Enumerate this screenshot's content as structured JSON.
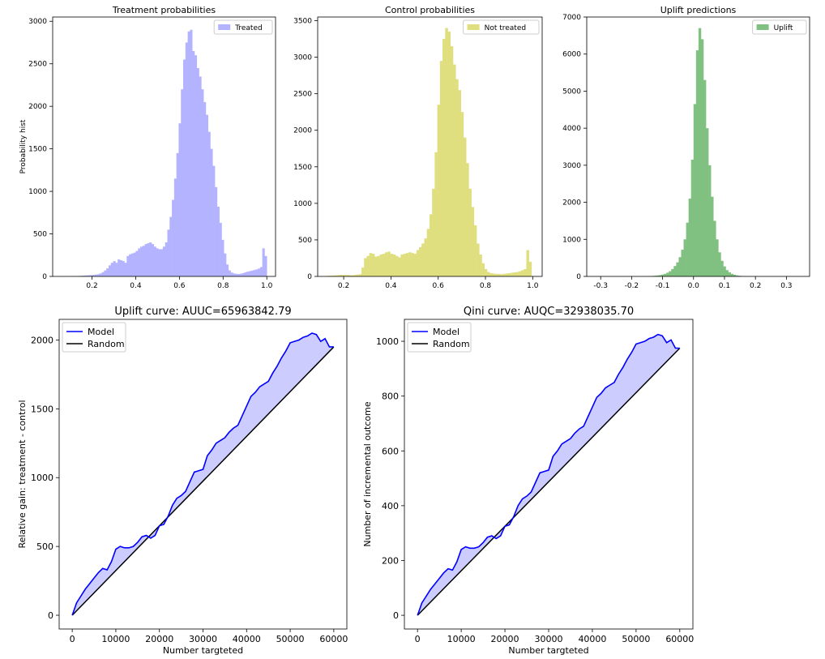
{
  "chart_data": [
    {
      "id": "treated",
      "type": "histogram",
      "title": "Treatment probabilities",
      "ylabel": "Probability hist",
      "xlabel": "",
      "legend": [
        "Treated"
      ],
      "legend_placement": "top-right",
      "color": "#0000ff",
      "alpha": 0.3,
      "xlim": [
        0.02,
        1.04
      ],
      "ylim": [
        0,
        3050
      ],
      "xticks": [
        0.2,
        0.4,
        0.6,
        0.8,
        1.0
      ],
      "xtick_labels": [
        "0.2",
        "0.4",
        "0.6",
        "0.8",
        "1.0"
      ],
      "yticks": [
        0,
        500,
        1000,
        1500,
        2000,
        2500,
        3000
      ],
      "bin_start": 0.1,
      "bin_end": 1.0,
      "counts": [
        2,
        3,
        4,
        5,
        6,
        8,
        10,
        12,
        14,
        16,
        18,
        22,
        26,
        35,
        50,
        70,
        95,
        130,
        160,
        180,
        160,
        200,
        190,
        180,
        160,
        240,
        260,
        270,
        280,
        300,
        330,
        350,
        360,
        380,
        390,
        400,
        380,
        350,
        330,
        320,
        320,
        350,
        400,
        550,
        700,
        900,
        1150,
        1450,
        1800,
        2200,
        2550,
        2750,
        2880,
        2900,
        2650,
        2600,
        2450,
        2350,
        2200,
        2050,
        1900,
        1700,
        1500,
        1300,
        1050,
        820,
        630,
        430,
        270,
        140,
        70,
        45,
        35,
        30,
        28,
        32,
        38,
        48,
        55,
        62,
        68,
        75,
        82,
        92,
        110,
        330,
        240
      ]
    },
    {
      "id": "control",
      "type": "histogram",
      "title": "Control probabilities",
      "ylabel": "",
      "xlabel": "",
      "legend": [
        "Not treated"
      ],
      "legend_placement": "top-right",
      "color": "#bfbf00",
      "alpha": 0.5,
      "xlim": [
        0.09,
        1.04
      ],
      "ylim": [
        0,
        3550
      ],
      "xticks": [
        0.2,
        0.4,
        0.6,
        0.8,
        1.0
      ],
      "xtick_labels": [
        "0.2",
        "0.4",
        "0.6",
        "0.8",
        "1.0"
      ],
      "yticks": [
        0,
        500,
        1000,
        1500,
        2000,
        2500,
        3000,
        3500
      ],
      "bin_start": 0.12,
      "bin_end": 0.995,
      "counts": [
        5,
        8,
        10,
        12,
        15,
        18,
        22,
        20,
        20,
        18,
        15,
        20,
        25,
        30,
        120,
        250,
        280,
        320,
        310,
        270,
        280,
        300,
        310,
        330,
        340,
        310,
        300,
        280,
        260,
        300,
        310,
        320,
        330,
        320,
        310,
        360,
        400,
        450,
        520,
        650,
        850,
        1200,
        1700,
        2350,
        2950,
        3250,
        3400,
        3350,
        3150,
        2900,
        2700,
        2550,
        2250,
        1900,
        1550,
        1200,
        950,
        700,
        450,
        300,
        180,
        100,
        60,
        45,
        40,
        35,
        35,
        30,
        35,
        40,
        45,
        50,
        55,
        60,
        70,
        85,
        100,
        360,
        200
      ]
    },
    {
      "id": "uplift",
      "type": "histogram",
      "title": "Uplift predictions",
      "ylabel": "",
      "xlabel": "",
      "legend": [
        "Uplift"
      ],
      "legend_placement": "top-right",
      "color": "#008000",
      "alpha": 0.5,
      "xlim": [
        -0.345,
        0.375
      ],
      "ylim": [
        0,
        7000
      ],
      "xticks": [
        -0.3,
        -0.2,
        -0.1,
        0.0,
        0.1,
        0.2,
        0.3
      ],
      "xtick_labels": [
        "-0.3",
        "-0.2",
        "-0.1",
        "0.0",
        "0.1",
        "0.2",
        "0.3"
      ],
      "yticks": [
        0,
        1000,
        2000,
        3000,
        4000,
        5000,
        6000,
        7000
      ],
      "bin_start": -0.16,
      "bin_end": 0.2,
      "counts": [
        3,
        5,
        8,
        12,
        18,
        25,
        35,
        50,
        70,
        100,
        140,
        200,
        280,
        380,
        520,
        720,
        1000,
        1450,
        2100,
        3150,
        4650,
        6100,
        6700,
        6400,
        5300,
        4000,
        3000,
        2150,
        1500,
        1000,
        650,
        420,
        270,
        170,
        110,
        70,
        45,
        28,
        18,
        10,
        6,
        4,
        3,
        2,
        1
      ]
    },
    {
      "id": "uplift_curve",
      "type": "line",
      "title": "Uplift curve: AUUC=65963842.79",
      "xlabel": "Number targteted",
      "ylabel": "Relative gain: treatment - control",
      "legend": [
        "Model",
        "Random"
      ],
      "legend_placement": "top-left",
      "xlim": [
        -3000,
        63000
      ],
      "ylim": [
        -100,
        2150
      ],
      "xticks": [
        0,
        10000,
        20000,
        30000,
        40000,
        50000,
        60000
      ],
      "yticks": [
        0,
        500,
        1000,
        1500,
        2000
      ],
      "series": [
        {
          "name": "Model",
          "color": "#0000ff",
          "x": [
            0,
            1000,
            2000,
            3000,
            4000,
            5000,
            6000,
            7000,
            8000,
            9000,
            10000,
            11000,
            12000,
            13000,
            14000,
            15000,
            16000,
            17000,
            18000,
            19000,
            20000,
            21000,
            22000,
            23000,
            24000,
            25000,
            26000,
            27000,
            28000,
            29000,
            30000,
            31000,
            32000,
            33000,
            34000,
            35000,
            36000,
            37000,
            38000,
            39000,
            40000,
            41000,
            42000,
            43000,
            44000,
            45000,
            46000,
            47000,
            48000,
            49000,
            50000,
            51000,
            52000,
            53000,
            54000,
            55000,
            56000,
            57000,
            58000,
            59000,
            60000
          ],
          "y": [
            0,
            90,
            140,
            190,
            230,
            270,
            310,
            340,
            330,
            390,
            480,
            500,
            490,
            490,
            500,
            530,
            570,
            580,
            560,
            580,
            650,
            660,
            720,
            800,
            850,
            870,
            900,
            970,
            1040,
            1050,
            1060,
            1160,
            1200,
            1250,
            1270,
            1290,
            1330,
            1360,
            1380,
            1450,
            1520,
            1590,
            1620,
            1660,
            1680,
            1700,
            1760,
            1810,
            1870,
            1920,
            1980,
            1990,
            2000,
            2020,
            2030,
            2050,
            2040,
            1990,
            2010,
            1950,
            1950
          ]
        },
        {
          "name": "Random",
          "color": "#000000",
          "x": [
            0,
            60000
          ],
          "y": [
            0,
            1950
          ]
        }
      ]
    },
    {
      "id": "qini_curve",
      "type": "line",
      "title": "Qini curve: AUQC=32938035.70",
      "xlabel": "Number targteted",
      "ylabel": "Number of incremental outcome",
      "legend": [
        "Model",
        "Random"
      ],
      "legend_placement": "top-left",
      "xlim": [
        -3000,
        63000
      ],
      "ylim": [
        -50,
        1080
      ],
      "xticks": [
        0,
        10000,
        20000,
        30000,
        40000,
        50000,
        60000
      ],
      "yticks": [
        0,
        200,
        400,
        600,
        800,
        1000
      ],
      "series": [
        {
          "name": "Model",
          "color": "#0000ff",
          "x": [
            0,
            1000,
            2000,
            3000,
            4000,
            5000,
            6000,
            7000,
            8000,
            9000,
            10000,
            11000,
            12000,
            13000,
            14000,
            15000,
            16000,
            17000,
            18000,
            19000,
            20000,
            21000,
            22000,
            23000,
            24000,
            25000,
            26000,
            27000,
            28000,
            29000,
            30000,
            31000,
            32000,
            33000,
            34000,
            35000,
            36000,
            37000,
            38000,
            39000,
            40000,
            41000,
            42000,
            43000,
            44000,
            45000,
            46000,
            47000,
            48000,
            49000,
            50000,
            51000,
            52000,
            53000,
            54000,
            55000,
            56000,
            57000,
            58000,
            59000,
            60000
          ],
          "y": [
            0,
            45,
            70,
            95,
            115,
            135,
            155,
            170,
            165,
            195,
            240,
            250,
            245,
            245,
            250,
            265,
            285,
            290,
            280,
            290,
            325,
            330,
            360,
            400,
            425,
            435,
            450,
            485,
            520,
            525,
            530,
            580,
            600,
            625,
            635,
            645,
            665,
            680,
            690,
            725,
            760,
            795,
            810,
            830,
            840,
            850,
            880,
            905,
            935,
            960,
            990,
            995,
            1000,
            1010,
            1015,
            1025,
            1020,
            995,
            1005,
            975,
            975
          ]
        },
        {
          "name": "Random",
          "color": "#000000",
          "x": [
            0,
            60000
          ],
          "y": [
            0,
            975
          ]
        }
      ]
    }
  ]
}
